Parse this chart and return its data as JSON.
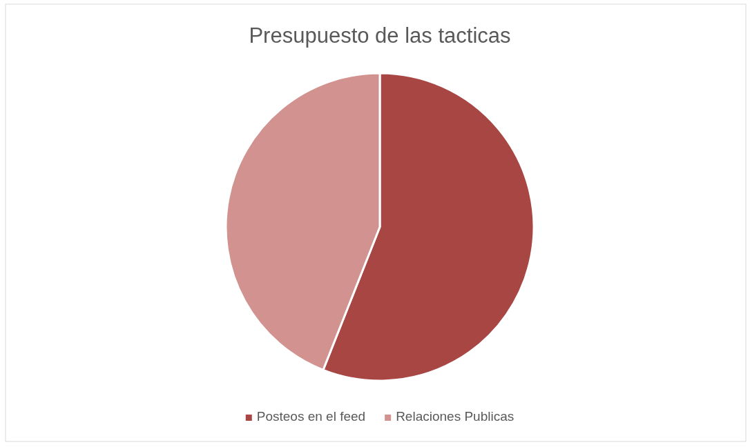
{
  "chart_data": {
    "type": "pie",
    "title": "Presupuesto de las tacticas",
    "categories": [
      "Posteos en el feed",
      "Relaciones Publicas"
    ],
    "values": [
      56,
      44
    ],
    "colors": [
      "#a84644",
      "#d29290"
    ],
    "legend": "bottom"
  }
}
